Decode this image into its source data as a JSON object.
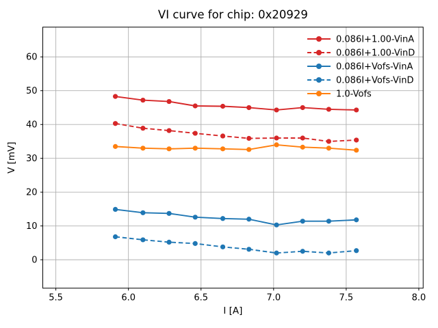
{
  "title": "VI curve for chip: 0x20929",
  "chart_data": {
    "type": "line",
    "title": "VI curve for chip: 0x20929",
    "xlabel": "I [A]",
    "ylabel": "V [mV]",
    "xlim": [
      5.41,
      8.03
    ],
    "ylim": [
      -8.4,
      68.8
    ],
    "xticks": [
      5.5,
      6.0,
      6.5,
      7.0,
      7.5,
      8.0
    ],
    "yticks": [
      0,
      10,
      20,
      30,
      40,
      50,
      60
    ],
    "grid": true,
    "grid_color": "#b0b0b0",
    "legend_position": "upper right",
    "legend_frame": false,
    "x": [
      5.91,
      6.1,
      6.28,
      6.46,
      6.65,
      6.83,
      7.02,
      7.2,
      7.38,
      7.57
    ],
    "series": [
      {
        "name": "0.086I+1.00-VinA",
        "color": "#d62728",
        "style": "solid",
        "values": [
          48.3,
          47.2,
          46.8,
          45.5,
          45.4,
          45.0,
          44.3,
          45.0,
          44.5,
          44.3
        ]
      },
      {
        "name": "0.086I+1.00-VinD",
        "color": "#d62728",
        "style": "dashed",
        "values": [
          40.3,
          38.9,
          38.2,
          37.4,
          36.6,
          35.9,
          36.0,
          36.0,
          35.0,
          35.4
        ]
      },
      {
        "name": "0.086I+Vofs-VinA",
        "color": "#1f77b4",
        "style": "solid",
        "values": [
          14.9,
          13.9,
          13.7,
          12.6,
          12.2,
          12.0,
          10.3,
          11.4,
          11.4,
          11.8
        ]
      },
      {
        "name": "0.086I+Vofs-VinD",
        "color": "#1f77b4",
        "style": "dashed",
        "values": [
          6.8,
          5.9,
          5.2,
          4.8,
          3.8,
          3.1,
          2.0,
          2.5,
          2.0,
          2.7
        ]
      },
      {
        "name": "1.0-Vofs",
        "color": "#ff7f0e",
        "style": "solid",
        "values": [
          33.5,
          33.0,
          32.8,
          33.0,
          32.8,
          32.6,
          34.0,
          33.3,
          33.0,
          32.4
        ]
      }
    ]
  }
}
